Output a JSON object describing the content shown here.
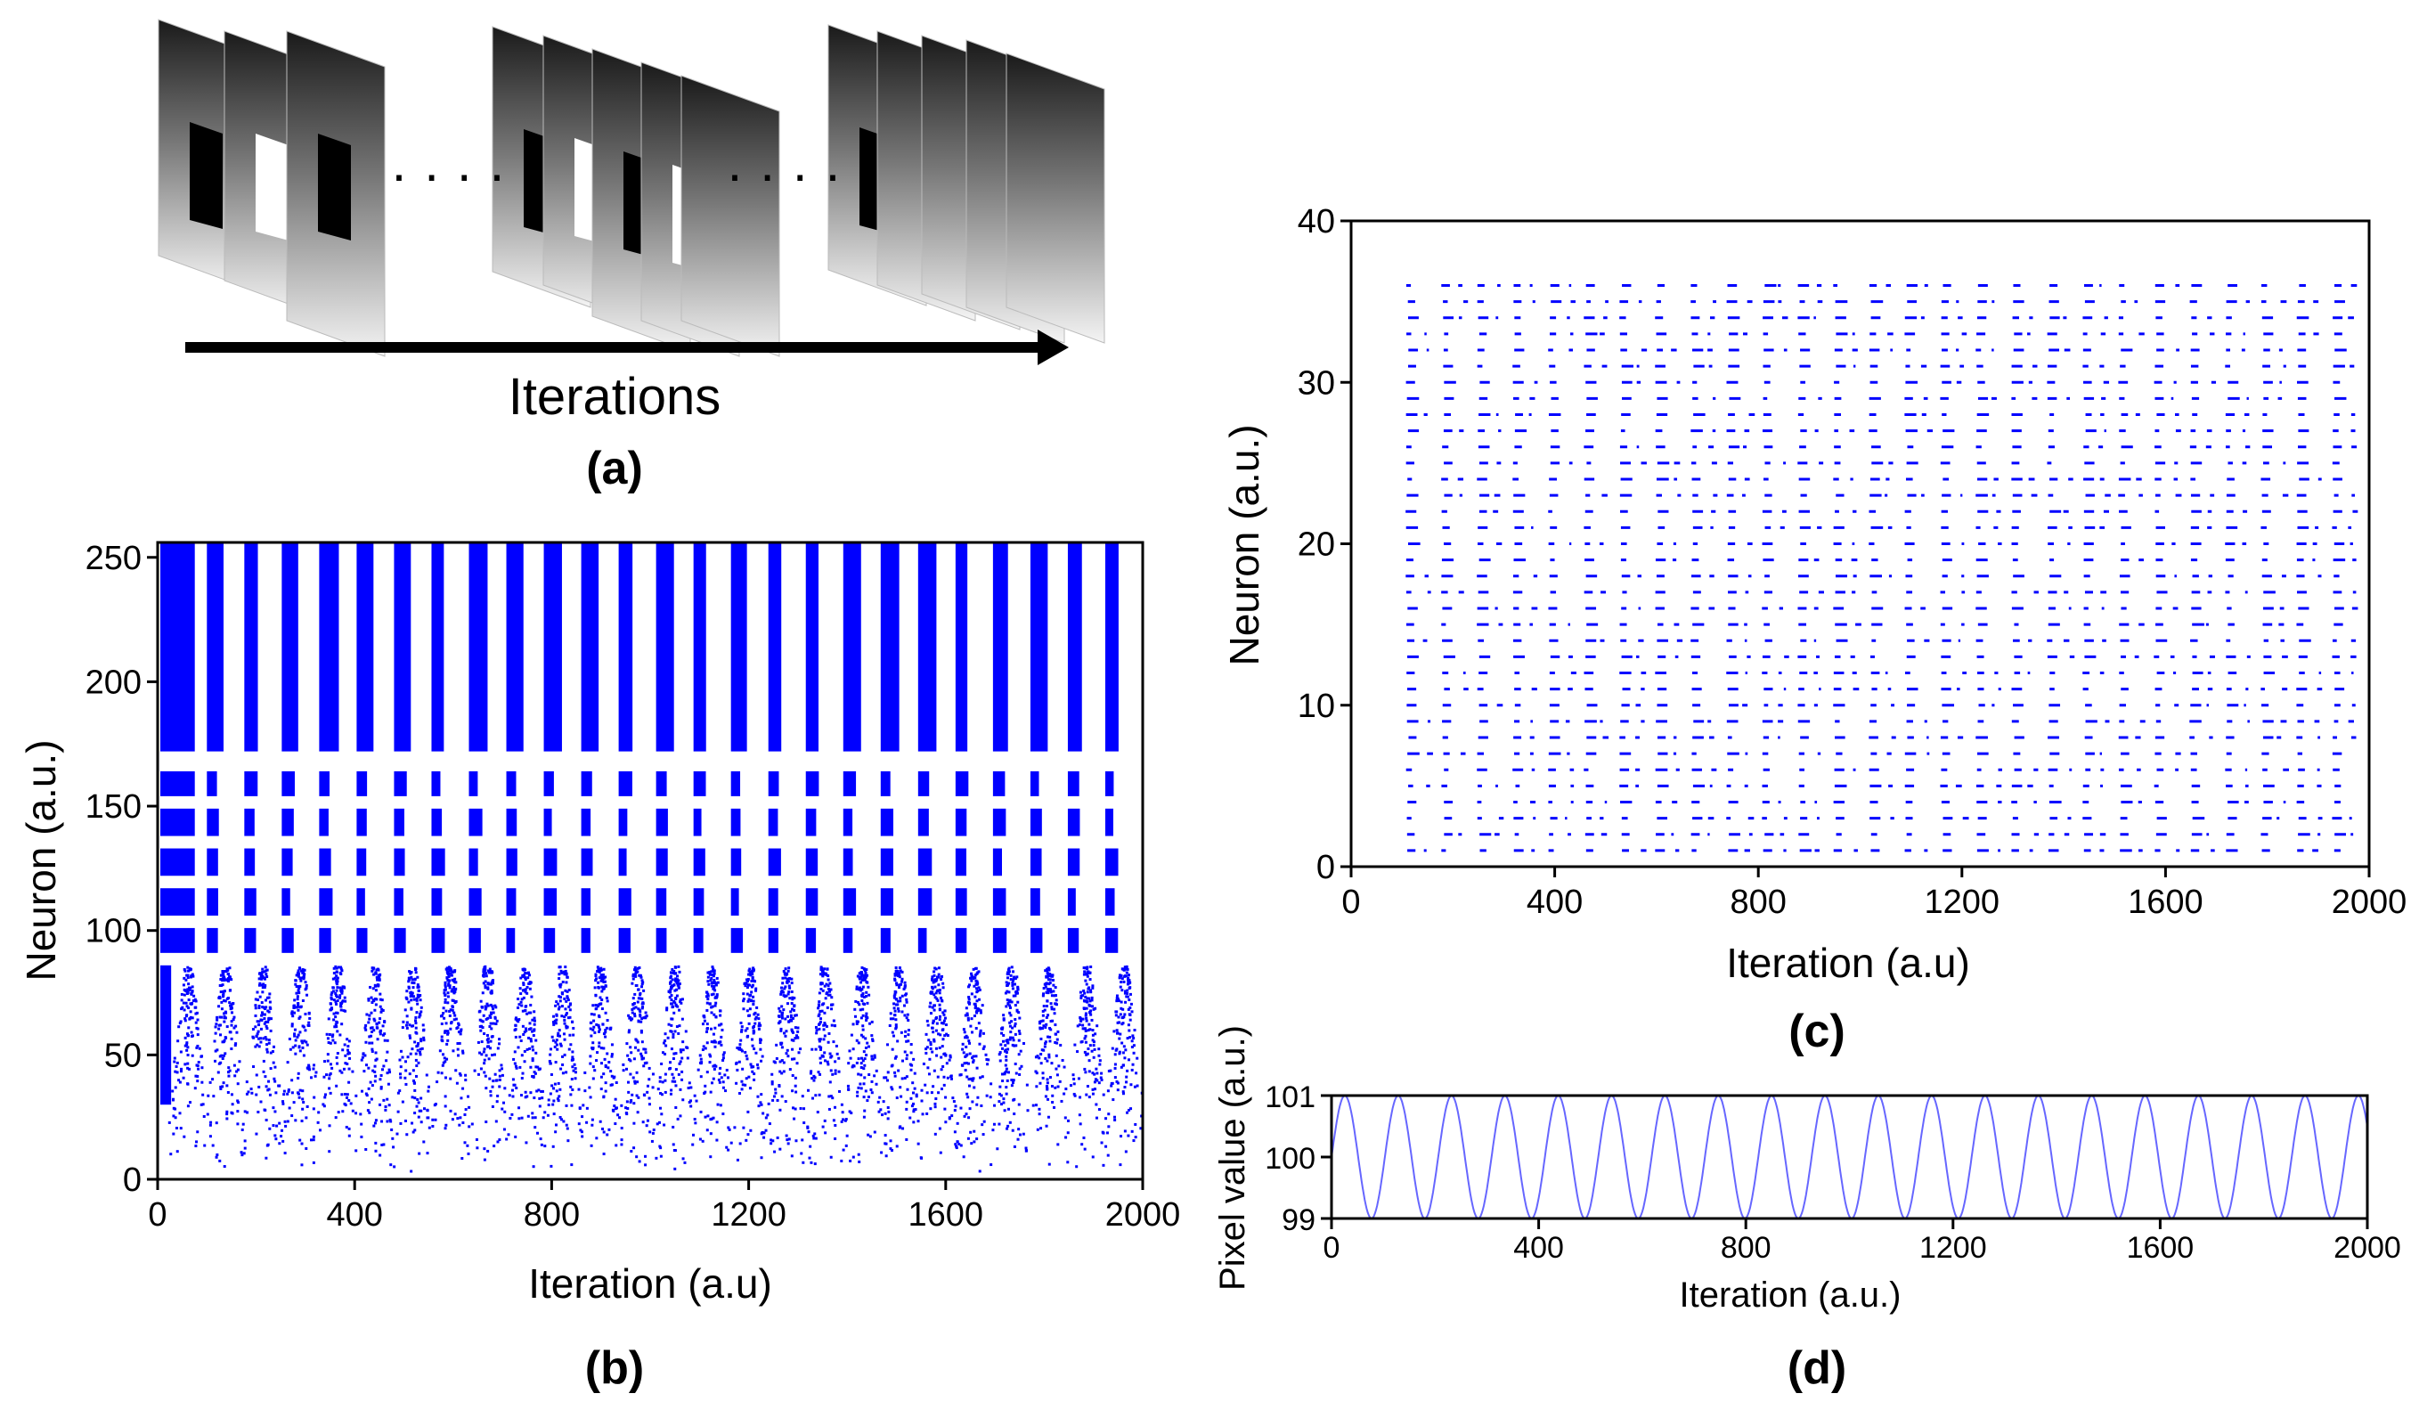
{
  "panel_a": {
    "label": "(a)",
    "arrow_label": "Iterations",
    "ellipsis": "· · · · ·",
    "icon": "image-frame-stack-icon"
  },
  "chart_data": [
    {
      "id": "b",
      "panel_label": "(b)",
      "type": "scatter",
      "title": "",
      "xlabel": "Iteration (a.u)",
      "ylabel": "Neuron (a.u.)",
      "xlim": [
        0,
        2000
      ],
      "ylim": [
        0,
        256
      ],
      "xticks": [
        0,
        400,
        800,
        1200,
        1600,
        2000
      ],
      "yticks": [
        0,
        50,
        100,
        150,
        200,
        250
      ],
      "color": "#0000ff",
      "bands": [
        {
          "name": "upper block",
          "y_range": [
            172,
            256
          ]
        },
        {
          "name": "band 1",
          "y_range": [
            154,
            164
          ]
        },
        {
          "name": "band 2",
          "y_range": [
            138,
            149
          ]
        },
        {
          "name": "band 3",
          "y_range": [
            122,
            133
          ]
        },
        {
          "name": "band 4",
          "y_range": [
            106,
            117
          ]
        },
        {
          "name": "band 5",
          "y_range": [
            91,
            101
          ]
        },
        {
          "name": "lower scattered region",
          "y_range": [
            0,
            86
          ]
        }
      ],
      "burst_period": 76,
      "dense_region_x_range": [
        0,
        70
      ]
    },
    {
      "id": "c",
      "panel_label": "(c)",
      "type": "scatter",
      "title": "",
      "xlabel": "Iteration (a.u)",
      "ylabel": "Neuron (a.u.)",
      "xlim": [
        0,
        2000
      ],
      "ylim": [
        0,
        40
      ],
      "xticks": [
        0,
        400,
        800,
        1200,
        1600,
        2000
      ],
      "yticks": [
        0,
        10,
        20,
        30,
        40
      ],
      "color": "#0000ff",
      "neuron_range": [
        1,
        36
      ],
      "spike_start_iteration": 110,
      "burst_period": 70
    },
    {
      "id": "d",
      "panel_label": "(d)",
      "type": "line",
      "title": "",
      "xlabel": "Iteration (a.u.)",
      "ylabel": "Pixel value (a.u.)",
      "xlim": [
        0,
        2000
      ],
      "ylim": [
        99,
        101
      ],
      "xticks": [
        0,
        400,
        800,
        1200,
        1600,
        2000
      ],
      "yticks": [
        99,
        100,
        101
      ],
      "color": "#6666ff",
      "function": "100 + sin(2*pi*x/period)",
      "amplitude": 1,
      "offset": 100,
      "period": 103
    }
  ]
}
